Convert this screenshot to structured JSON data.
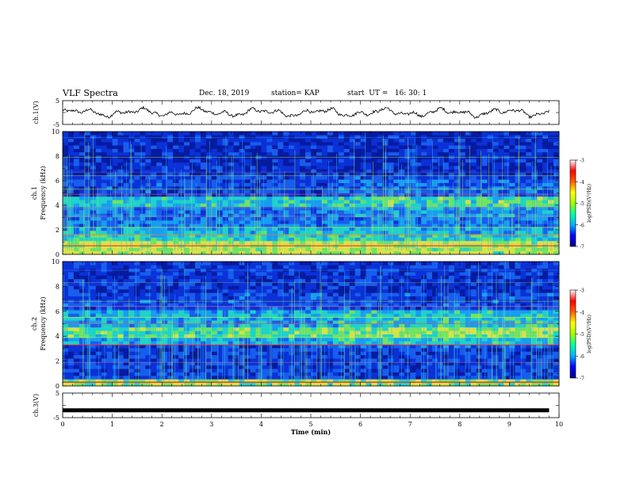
{
  "header": {
    "title": "VLF Spectra",
    "date": "Dec. 18, 2019",
    "station": "station= KAP",
    "start_ut": "start  UT =   16: 30: 1"
  },
  "chart_data": [
    {
      "type": "line",
      "ylabel": "ch.1(V)",
      "ylim": [
        -5,
        5
      ],
      "yticks": [
        "5",
        "-5"
      ],
      "x_range": [
        0,
        9.8
      ],
      "y_mean": 0,
      "y_amplitude": 2.5
    },
    {
      "type": "heatmap",
      "ylabel": "ch.1 Frequency (kHz)",
      "ylim": [
        0,
        10
      ],
      "yticks": [
        "0",
        "2",
        "4",
        "6",
        "8",
        "10"
      ],
      "colorbar": {
        "label": "log(PSD)(V²/Hz)",
        "ticks": [
          "-3",
          "-4",
          "-5",
          "-6",
          "-7"
        ],
        "range": [
          -7,
          -3
        ],
        "colors": [
          "#000080",
          "#0000ff",
          "#00b0ff",
          "#00ffa0",
          "#a0ff00",
          "#ffff00",
          "#ff6000",
          "#ff0000",
          "#ffffff"
        ]
      }
    },
    {
      "type": "heatmap",
      "ylabel": "ch.2 Frequency (kHz)",
      "ylim": [
        0,
        10
      ],
      "yticks": [
        "0",
        "2",
        "4",
        "6",
        "8",
        "10"
      ],
      "colorbar": {
        "label": "log(PSD)(V²/Hz)",
        "ticks": [
          "-3",
          "-4",
          "-5",
          "-6",
          "-7"
        ],
        "range": [
          -7,
          -3
        ],
        "colors": [
          "#000080",
          "#0000ff",
          "#00b0ff",
          "#00ffa0",
          "#a0ff00",
          "#ffff00",
          "#ff6000",
          "#ff0000",
          "#ffffff"
        ]
      }
    },
    {
      "type": "line",
      "ylabel": "ch.3(V)",
      "ylim": [
        -5,
        5
      ],
      "yticks": [
        "5",
        "-5"
      ],
      "x_range": [
        0,
        9.8
      ],
      "y_value": -2
    }
  ],
  "x_axis": {
    "xlabel": "Time  (min)",
    "xlim": [
      0,
      10
    ],
    "ticks": [
      "0",
      "1",
      "2",
      "3",
      "4",
      "5",
      "6",
      "7",
      "8",
      "9",
      "10"
    ]
  }
}
